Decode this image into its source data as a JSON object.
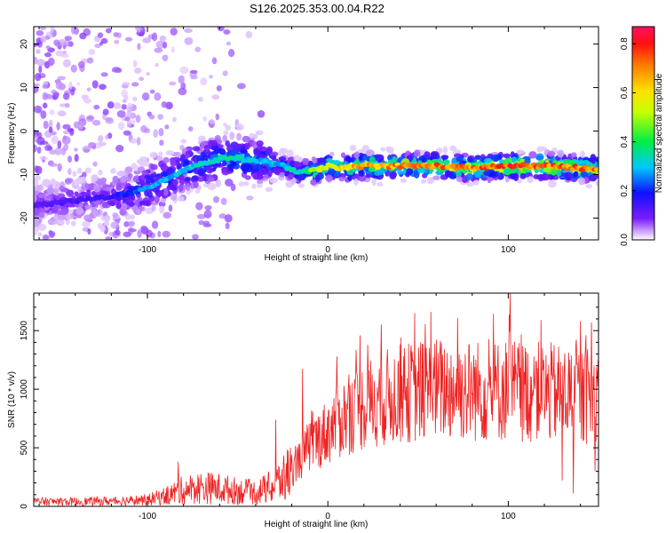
{
  "title": "S126.2025.353.00.04.R22",
  "chart_data": [
    {
      "type": "heatmap",
      "xlabel": "Height of straight line (km)",
      "ylabel": "Frequency (Hz)",
      "xlim": [
        -163,
        150
      ],
      "ylim": [
        -25,
        24
      ],
      "xticks": [
        -100,
        0,
        100
      ],
      "yticks": [
        20,
        10,
        0,
        -10,
        -20
      ],
      "colorbar": {
        "label": "Normalized spectral amplitude",
        "range": [
          0.0,
          0.87
        ],
        "ticks": [
          "0.0",
          "0.2",
          "0.4",
          "0.6",
          "0.8"
        ],
        "tick_values": [
          0.0,
          0.2,
          0.4,
          0.6,
          0.8
        ]
      },
      "ridge": {
        "x": [
          -160,
          -140,
          -120,
          -105,
          -95,
          -85,
          -75,
          -65,
          -55,
          -45,
          -35,
          -25,
          -15,
          -5,
          0,
          10,
          20,
          40,
          60,
          80,
          100,
          120,
          140,
          150
        ],
        "freq": [
          -17,
          -16,
          -15,
          -14,
          -12,
          -10,
          -8,
          -7,
          -6,
          -6.5,
          -7,
          -8,
          -9.5,
          -9,
          -8,
          -8.5,
          -8,
          -8,
          -8,
          -8.5,
          -8,
          -8,
          -8.5,
          -8.5
        ],
        "amplitude": [
          0.12,
          0.14,
          0.16,
          0.25,
          0.3,
          0.3,
          0.32,
          0.35,
          0.35,
          0.33,
          0.3,
          0.3,
          0.35,
          0.55,
          0.6,
          0.65,
          0.7,
          0.72,
          0.75,
          0.72,
          0.8,
          0.76,
          0.75,
          0.74
        ]
      }
    },
    {
      "type": "line",
      "xlabel": "Height of straight line (km)",
      "ylabel": "SNR (10 * v/v)",
      "xlim": [
        -163,
        150
      ],
      "ylim": [
        0,
        1820
      ],
      "xticks": [
        -100,
        0,
        100
      ],
      "yticks": [
        0,
        500,
        1000,
        1500
      ],
      "color": "#ee2222",
      "envelope": {
        "x": [
          -163,
          -140,
          -120,
          -100,
          -90,
          -80,
          -70,
          -60,
          -50,
          -40,
          -30,
          -20,
          -10,
          0,
          10,
          20,
          30,
          40,
          50,
          60,
          70,
          80,
          90,
          100,
          110,
          120,
          130,
          140,
          150
        ],
        "snr": [
          40,
          40,
          45,
          55,
          90,
          140,
          160,
          150,
          130,
          120,
          170,
          300,
          520,
          640,
          780,
          860,
          920,
          960,
          980,
          1000,
          1000,
          990,
          980,
          1000,
          980,
          970,
          960,
          950,
          940
        ]
      },
      "peaks": [
        {
          "x": -83,
          "snr": 380
        },
        {
          "x": -29,
          "snr": 740
        },
        {
          "x": -14,
          "snr": 1175
        },
        {
          "x": 5,
          "snr": 1280
        },
        {
          "x": 18,
          "snr": 1460
        },
        {
          "x": 48,
          "snr": 1650
        },
        {
          "x": 57,
          "snr": 1660
        },
        {
          "x": 72,
          "snr": 1610
        },
        {
          "x": 101,
          "snr": 1820
        },
        {
          "x": 118,
          "snr": 1590
        },
        {
          "x": 140,
          "snr": 1580
        },
        {
          "x": 146,
          "snr": 1570
        }
      ],
      "dips": [
        {
          "x": 130,
          "snr": 220
        },
        {
          "x": 136,
          "snr": 110
        },
        {
          "x": 148,
          "snr": 300
        }
      ]
    }
  ]
}
